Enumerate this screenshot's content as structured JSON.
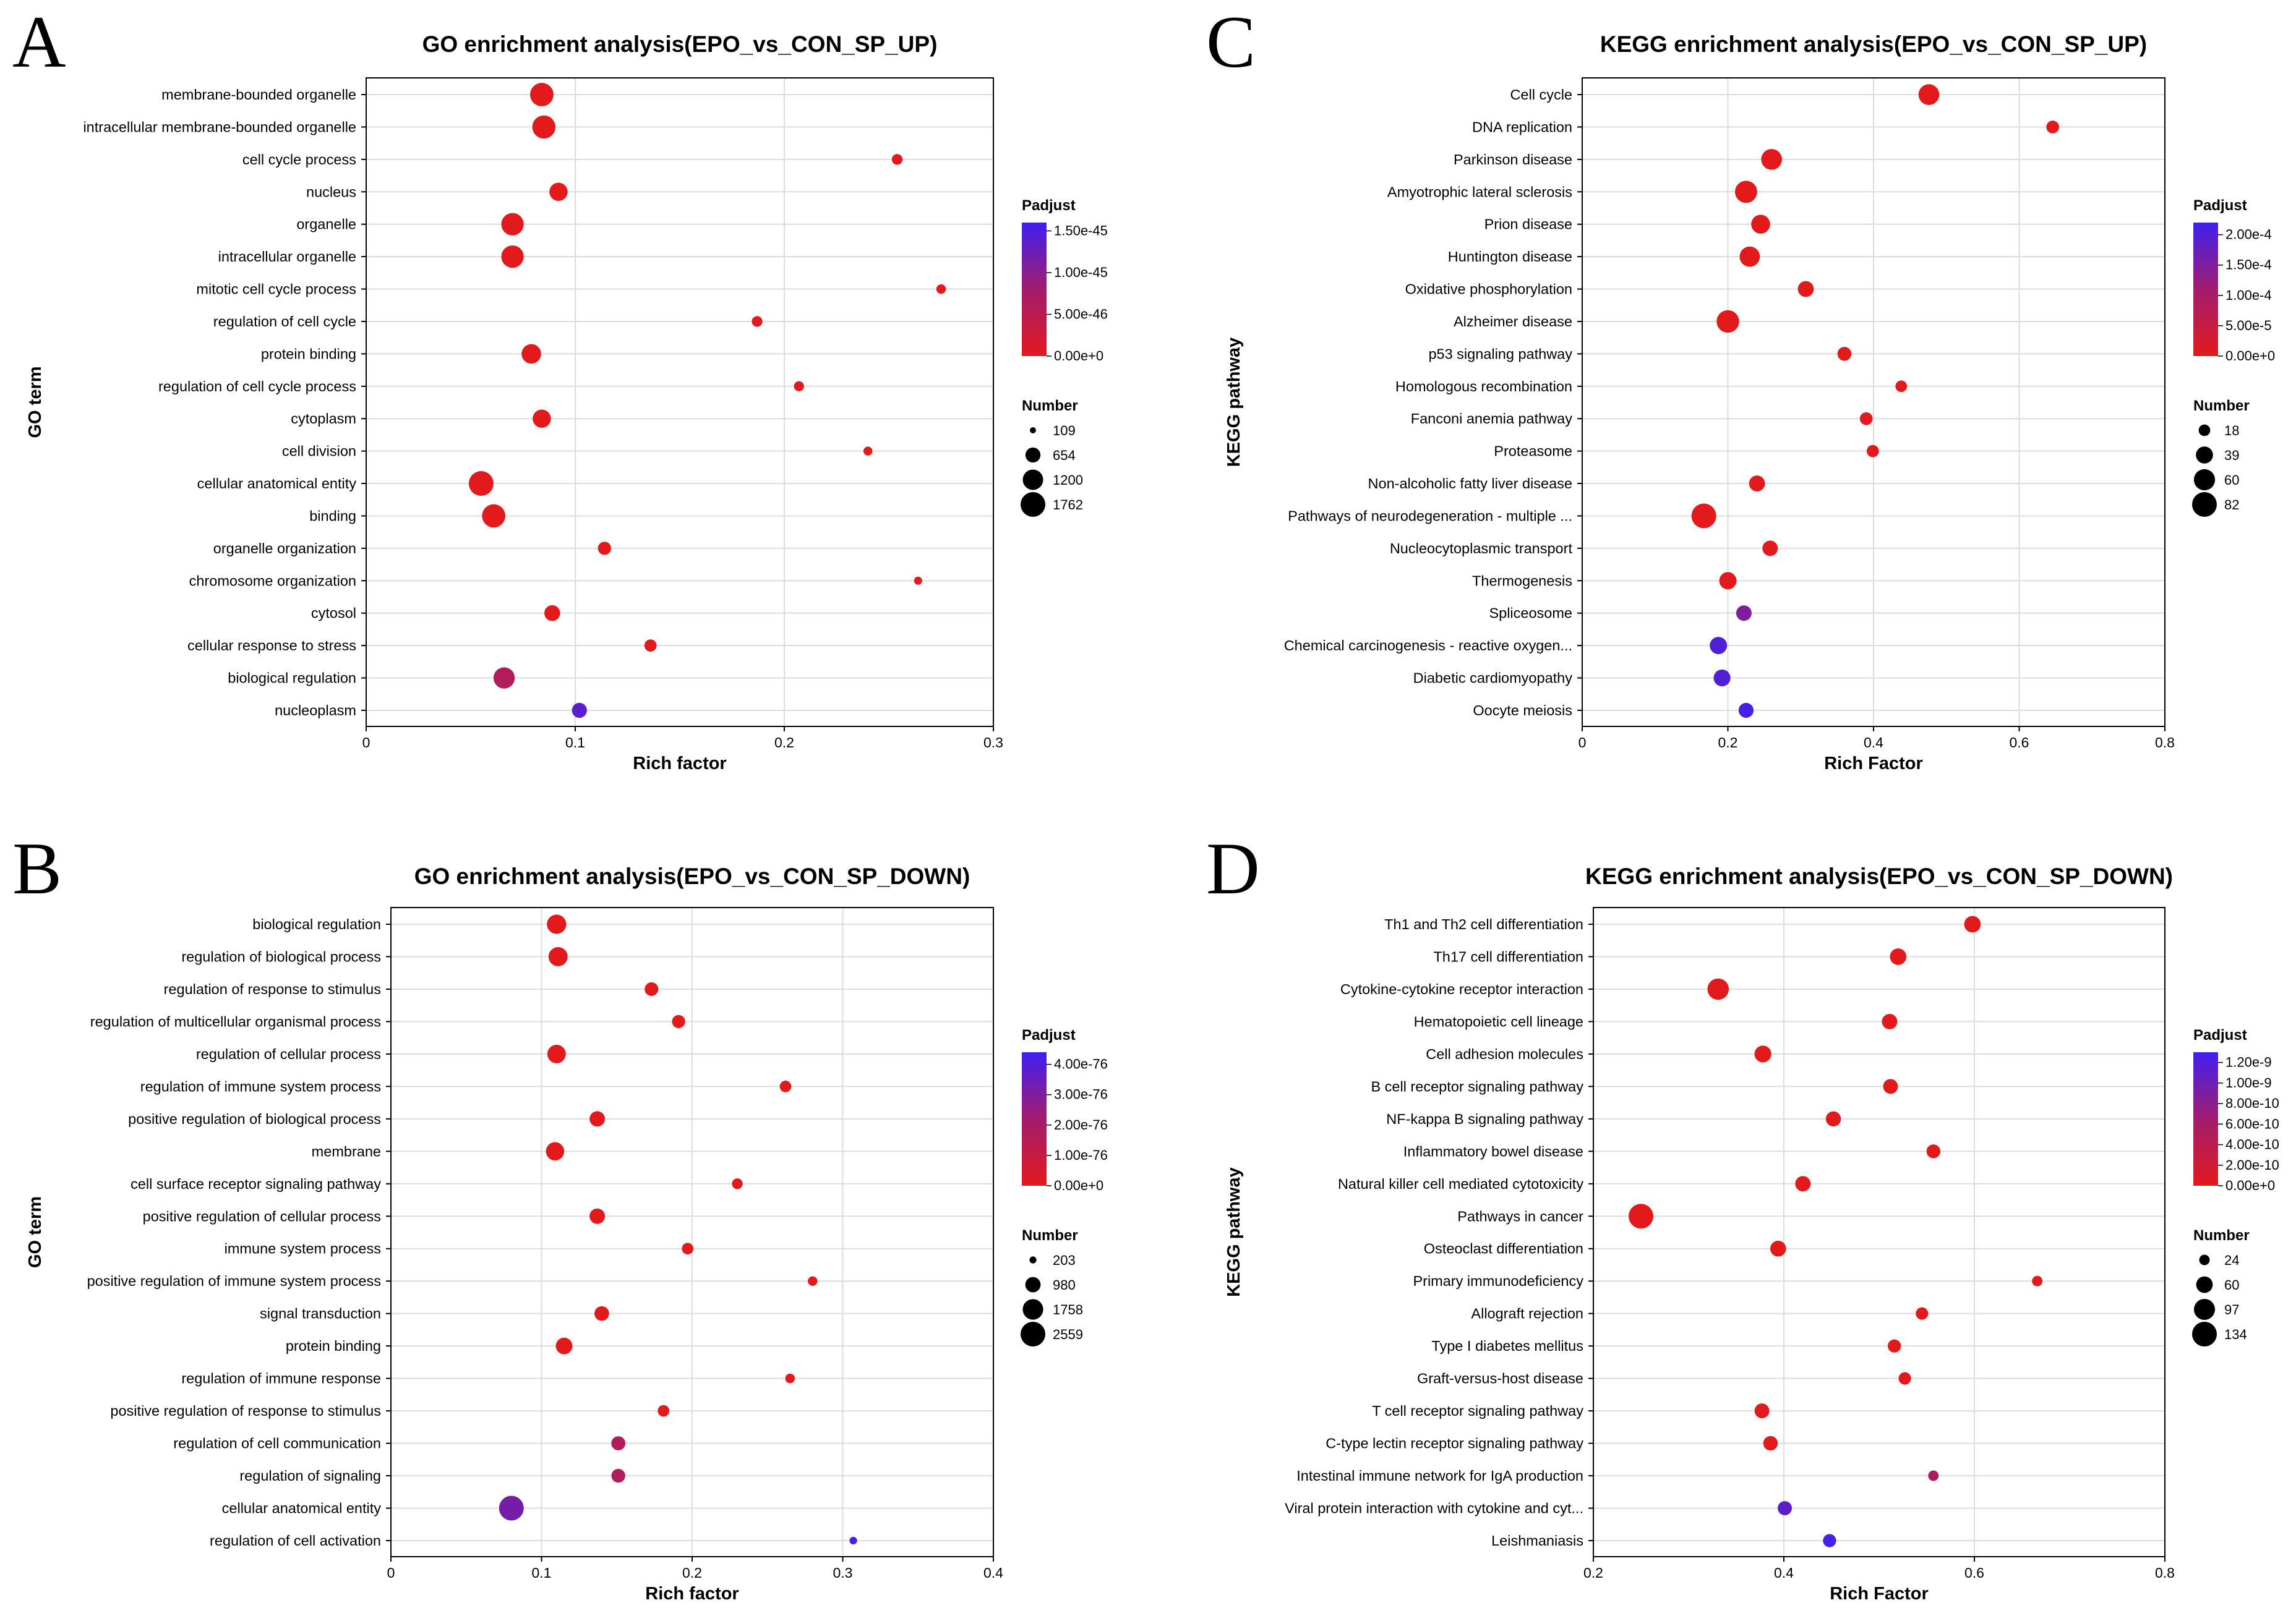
{
  "chart_data": [
    {
      "panel": "A",
      "type": "scatter",
      "title": "GO enrichment analysis(EPO_vs_CON_SP_UP)",
      "xlabel": "Rich factor",
      "ylabel": "GO term",
      "xlim": [
        0,
        0.3
      ],
      "xticks": [
        "0",
        "0.1",
        "0.2",
        "0.3"
      ],
      "grid": true,
      "categories": [
        "membrane-bounded organelle",
        "intracellular membrane-bounded organelle",
        "cell cycle process",
        "nucleus",
        "organelle",
        "intracellular organelle",
        "mitotic cell cycle process",
        "regulation of cell cycle",
        "protein binding",
        "regulation of cell cycle process",
        "cytoplasm",
        "cell division",
        "cellular anatomical entity",
        "binding",
        "organelle organization",
        "chromosome organization",
        "cytosol",
        "cellular response to stress",
        "biological regulation",
        "nucleoplasm"
      ],
      "x": [
        0.084,
        0.085,
        0.254,
        0.092,
        0.07,
        0.07,
        0.275,
        0.187,
        0.079,
        0.207,
        0.084,
        0.24,
        0.055,
        0.061,
        0.114,
        0.264,
        0.089,
        0.136,
        0.066,
        0.102
      ],
      "number": [
        1580,
        1540,
        330,
        960,
        1450,
        1450,
        260,
        330,
        1100,
        290,
        960,
        230,
        1762,
        1560,
        500,
        190,
        720,
        430,
        1300,
        650
      ],
      "padjust": [
        0,
        0,
        0,
        0,
        0,
        0,
        0,
        0,
        0,
        0,
        0,
        0,
        0,
        0,
        0,
        0,
        0,
        0,
        6e-46,
        1.4e-45
      ],
      "legend": {
        "color_title": "Padjust",
        "color_max": 1.6e-45,
        "color_ticks": [
          "1.50e-45",
          "1.00e-45",
          "5.00e-46",
          "0.00e+0"
        ],
        "color_tick_values": [
          1.5e-45,
          1e-45,
          5e-46,
          0
        ],
        "size_title": "Number",
        "size_labels": [
          "109",
          "654",
          "1200",
          "1762"
        ],
        "size_values": [
          109,
          654,
          1200,
          1762
        ]
      }
    },
    {
      "panel": "C",
      "type": "scatter",
      "title": "KEGG enrichment analysis(EPO_vs_CON_SP_UP)",
      "xlabel": "Rich Factor",
      "ylabel": "KEGG pathway",
      "xlim": [
        0,
        0.8
      ],
      "xticks": [
        "0",
        "0.2",
        "0.4",
        "0.6",
        "0.8"
      ],
      "grid": true,
      "categories": [
        "Cell cycle",
        "DNA replication",
        "Parkinson disease",
        "Amyotrophic lateral sclerosis",
        "Prion disease",
        "Huntington disease",
        "Oxidative phosphorylation",
        "Alzheimer disease",
        "p53 signaling pathway",
        "Homologous recombination",
        "Fanconi anemia pathway",
        "Proteasome",
        "Non-alcoholic fatty liver disease",
        "Pathways of neurodegeneration - multiple ...",
        "Nucleocytoplasmic transport",
        "Thermogenesis",
        "Spliceosome",
        "Chemical carcinogenesis - reactive oxygen...",
        "Diabetic cardiomyopathy",
        "Oocyte meiosis"
      ],
      "x": [
        0.476,
        0.646,
        0.26,
        0.225,
        0.245,
        0.23,
        0.307,
        0.2,
        0.36,
        0.438,
        0.39,
        0.399,
        0.24,
        0.167,
        0.258,
        0.2,
        0.222,
        0.187,
        0.192,
        0.225
      ],
      "number": [
        58,
        22,
        58,
        66,
        48,
        55,
        34,
        68,
        26,
        18,
        22,
        20,
        34,
        82,
        32,
        40,
        32,
        40,
        38,
        30
      ],
      "padjust": [
        0,
        0,
        0,
        0,
        0,
        0,
        0,
        0,
        0,
        0,
        0,
        0,
        0,
        0,
        0,
        0,
        0.00015,
        0.0002,
        0.0002,
        0.00021
      ],
      "legend": {
        "color_title": "Padjust",
        "color_max": 0.00022,
        "color_ticks": [
          "2.00e-4",
          "1.50e-4",
          "1.00e-4",
          "5.00e-5",
          "0.00e+0"
        ],
        "color_tick_values": [
          0.0002,
          0.00015,
          0.0001,
          5e-05,
          0
        ],
        "size_title": "Number",
        "size_labels": [
          "18",
          "39",
          "60",
          "82"
        ],
        "size_values": [
          18,
          39,
          60,
          82
        ]
      }
    },
    {
      "panel": "B",
      "type": "scatter",
      "title": "GO enrichment analysis(EPO_vs_CON_SP_DOWN)",
      "xlabel": "Rich factor",
      "ylabel": "GO term",
      "xlim": [
        0,
        0.4
      ],
      "xticks": [
        "0",
        "0.1",
        "0.2",
        "0.3",
        "0.4"
      ],
      "grid": true,
      "categories": [
        "biological regulation",
        "regulation of biological process",
        "regulation of response to stimulus",
        "regulation of multicellular organismal process",
        "regulation of cellular process",
        "regulation of immune system process",
        "positive regulation of biological process",
        "membrane",
        "cell surface receptor signaling pathway",
        "positive regulation of cellular process",
        "immune system process",
        "positive regulation of immune system process",
        "signal transduction",
        "protein binding",
        "regulation of immune response",
        "positive regulation of response to stimulus",
        "regulation of cell communication",
        "regulation of signaling",
        "cellular anatomical entity",
        "regulation of cell activation"
      ],
      "x": [
        0.11,
        0.111,
        0.173,
        0.191,
        0.11,
        0.262,
        0.137,
        0.109,
        0.23,
        0.137,
        0.197,
        0.28,
        0.14,
        0.115,
        0.265,
        0.181,
        0.151,
        0.151,
        0.08,
        0.307
      ],
      "number": [
        1560,
        1530,
        780,
        720,
        1430,
        560,
        990,
        1400,
        480,
        1000,
        560,
        380,
        900,
        1160,
        380,
        560,
        830,
        800,
        2559,
        240
      ],
      "padjust": [
        0,
        0,
        0,
        0,
        0,
        0,
        0,
        0,
        0,
        0,
        0,
        0,
        0,
        0,
        0,
        0,
        1.7e-76,
        1.7e-76,
        3.2e-76,
        4.2e-76
      ],
      "legend": {
        "color_title": "Padjust",
        "color_max": 4.4e-76,
        "color_ticks": [
          "4.00e-76",
          "3.00e-76",
          "2.00e-76",
          "1.00e-76",
          "0.00e+0"
        ],
        "color_tick_values": [
          4e-76,
          3e-76,
          2e-76,
          1e-76,
          0
        ],
        "size_title": "Number",
        "size_labels": [
          "203",
          "980",
          "1758",
          "2559"
        ],
        "size_values": [
          203,
          980,
          1758,
          2559
        ]
      }
    },
    {
      "panel": "D",
      "type": "scatter",
      "title": "KEGG enrichment analysis(EPO_vs_CON_SP_DOWN)",
      "xlabel": "Rich Factor",
      "ylabel": "KEGG pathway",
      "xlim": [
        0.2,
        0.8
      ],
      "xticks": [
        "0.2",
        "0.4",
        "0.6",
        "0.8"
      ],
      "grid": true,
      "categories": [
        "Th1 and Th2 cell differentiation",
        "Th17 cell differentiation",
        "Cytokine-cytokine receptor interaction",
        "Hematopoietic cell lineage",
        "Cell adhesion molecules",
        "B cell receptor signaling pathway",
        "NF-kappa B signaling pathway",
        "Inflammatory bowel disease",
        "Natural killer cell mediated cytotoxicity",
        "Pathways in cancer",
        "Osteoclast differentiation",
        "Primary immunodeficiency",
        "Allograft rejection",
        "Type I diabetes mellitus",
        "Graft-versus-host disease",
        "T cell receptor signaling pathway",
        "C-type lectin receptor signaling pathway",
        "Intestinal immune network for IgA production",
        "Viral protein interaction with cytokine and cyt...",
        "Leishmaniasis"
      ],
      "x": [
        0.598,
        0.52,
        0.331,
        0.511,
        0.378,
        0.512,
        0.452,
        0.557,
        0.42,
        0.25,
        0.394,
        0.666,
        0.545,
        0.516,
        0.527,
        0.377,
        0.386,
        0.557,
        0.401,
        0.448
      ],
      "number": [
        60,
        60,
        100,
        52,
        62,
        48,
        50,
        42,
        52,
        134,
        55,
        24,
        34,
        38,
        34,
        48,
        46,
        24,
        44,
        38
      ],
      "padjust": [
        0,
        0,
        0,
        0,
        0,
        0,
        0,
        0,
        0,
        0,
        0,
        0,
        0,
        0,
        0,
        0,
        0,
        5.5e-10,
        1.1e-09,
        1.25e-09
      ],
      "legend": {
        "color_title": "Padjust",
        "color_max": 1.3e-09,
        "color_ticks": [
          "1.20e-9",
          "1.00e-9",
          "8.00e-10",
          "6.00e-10",
          "4.00e-10",
          "2.00e-10",
          "0.00e+0"
        ],
        "color_tick_values": [
          1.2e-09,
          1e-09,
          8e-10,
          6e-10,
          4e-10,
          2e-10,
          0
        ],
        "size_title": "Number",
        "size_labels": [
          "24",
          "60",
          "97",
          "134"
        ],
        "size_values": [
          24,
          60,
          97,
          134
        ]
      }
    }
  ],
  "colors": {
    "low": "#e31a1c",
    "mid": "#a21c6e",
    "high": "#3f1ff0",
    "grid": "#dcdcdc",
    "axis": "#000000"
  }
}
